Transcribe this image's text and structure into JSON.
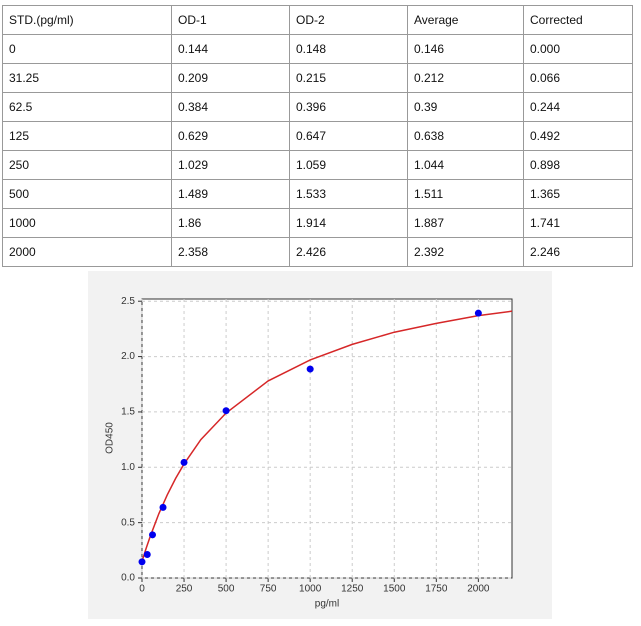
{
  "table": {
    "header": [
      "STD.(pg/ml)",
      "OD-1",
      "OD-2",
      "Average",
      "Corrected"
    ],
    "rows": [
      [
        "0",
        "0.144",
        "0.148",
        "0.146",
        "0.000"
      ],
      [
        "31.25",
        "0.209",
        "0.215",
        "0.212",
        "0.066"
      ],
      [
        "62.5",
        "0.384",
        "0.396",
        "0.39",
        "0.244"
      ],
      [
        "125",
        "0.629",
        "0.647",
        "0.638",
        "0.492"
      ],
      [
        "250",
        "1.029",
        "1.059",
        "1.044",
        "0.898"
      ],
      [
        "500",
        "1.489",
        "1.533",
        "1.511",
        "1.365"
      ],
      [
        "1000",
        "1.86",
        "1.914",
        "1.887",
        "1.741"
      ],
      [
        "2000",
        "2.358",
        "2.426",
        "2.392",
        "2.246"
      ]
    ]
  },
  "chart_data": {
    "type": "scatter",
    "xlabel": "pg/ml",
    "ylabel": "OD450",
    "grid": true,
    "xlim": [
      0,
      2200
    ],
    "ylim": [
      0,
      2.52
    ],
    "xticks": [
      0,
      250,
      500,
      750,
      1000,
      1250,
      1500,
      1750,
      2000
    ],
    "yticks": [
      {
        "value": 0,
        "label": "0.0"
      },
      {
        "value": 0.5,
        "label": "0.5"
      },
      {
        "value": 1,
        "label": "1.0"
      },
      {
        "value": 1.5,
        "label": "1.5"
      },
      {
        "value": 2,
        "label": "2.0"
      },
      {
        "value": 2.5,
        "label": "2.5"
      }
    ],
    "series": [
      {
        "type": "scatter",
        "color": "#0000ee",
        "x": [
          0,
          31.25,
          62.5,
          125,
          250,
          500,
          1000,
          2000
        ],
        "values": [
          0.146,
          0.212,
          0.39,
          0.638,
          1.044,
          1.511,
          1.887,
          2.392
        ]
      },
      {
        "type": "line",
        "color": "#d62728",
        "x": [
          0,
          25,
          50,
          100,
          150,
          200,
          250,
          350,
          500,
          750,
          1000,
          1250,
          1500,
          1750,
          2000,
          2200
        ],
        "values": [
          0.15,
          0.27,
          0.38,
          0.58,
          0.75,
          0.9,
          1.03,
          1.25,
          1.49,
          1.78,
          1.97,
          2.11,
          2.22,
          2.3,
          2.37,
          2.41
        ]
      }
    ]
  }
}
